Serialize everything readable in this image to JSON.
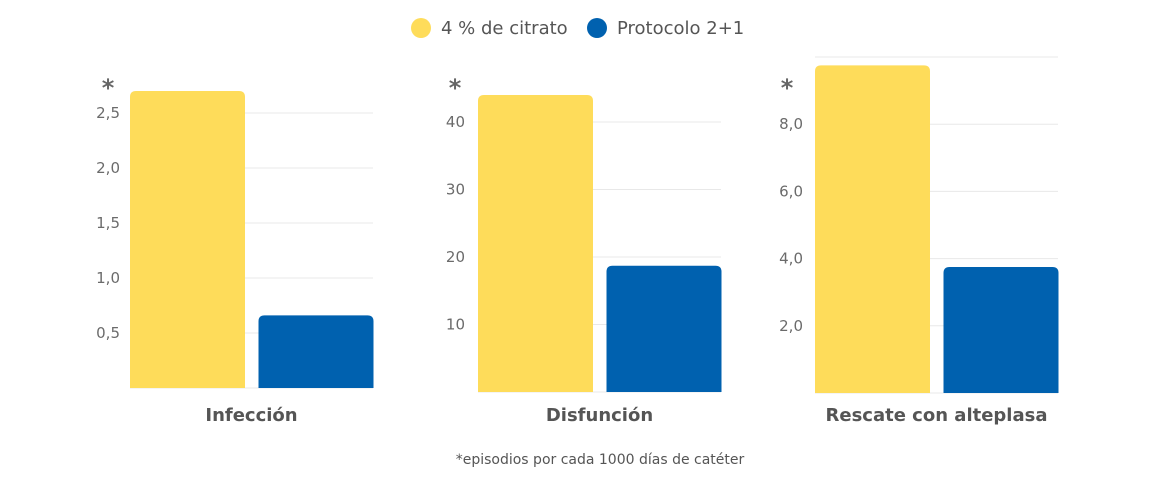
{
  "colors": {
    "citrato": "#FEDC5A",
    "protocolo": "#0061AF",
    "grid": "#e8e8e8"
  },
  "legend": [
    {
      "label": "4 % de citrato",
      "color": "#FEDC5A"
    },
    {
      "label": "Protocolo 2+1",
      "color": "#0061AF"
    }
  ],
  "footnote": "*episodios por cada 1000 días de catéter",
  "chart_data": [
    {
      "type": "bar",
      "title": "Infección",
      "unit_marker": "*",
      "categories": [
        "4 % de citrato",
        "Protocolo 2+1"
      ],
      "values": [
        2.7,
        0.66
      ],
      "ticks": [
        0.5,
        1.0,
        1.5,
        2.0,
        2.5
      ],
      "tick_labels": [
        "0,5",
        "1,0",
        "1,5",
        "2,0",
        "2,5"
      ],
      "ylim": [
        0,
        2.7
      ],
      "grid": true
    },
    {
      "type": "bar",
      "title": "Disfunción",
      "unit_marker": "*",
      "categories": [
        "4 % de citrato",
        "Protocolo 2+1"
      ],
      "values": [
        44,
        18.7
      ],
      "ticks": [
        10,
        20,
        30,
        40
      ],
      "tick_labels": [
        "10",
        "20",
        "30",
        "40"
      ],
      "ylim": [
        0,
        44
      ],
      "grid": true
    },
    {
      "type": "bar",
      "title": "Rescate con alteplasa",
      "unit_marker": "*",
      "categories": [
        "4 % de citrato",
        "Protocolo 2+1"
      ],
      "values": [
        9.75,
        3.75
      ],
      "ticks": [
        2,
        4,
        6,
        8,
        10
      ],
      "tick_labels": [
        "2,0",
        "4,0",
        "6,0",
        "8,0",
        ""
      ],
      "ylim": [
        0,
        10
      ],
      "grid": true
    }
  ]
}
